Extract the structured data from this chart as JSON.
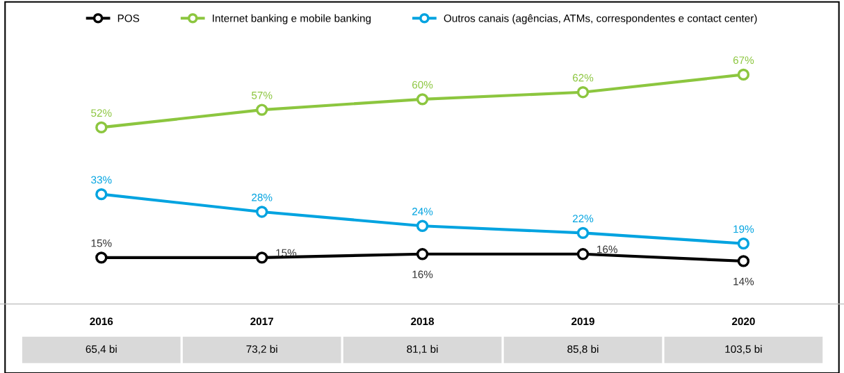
{
  "chart_data": {
    "type": "line",
    "categories": [
      "2016",
      "2017",
      "2018",
      "2019",
      "2020"
    ],
    "series": [
      {
        "name": "POS",
        "color": "#000000",
        "values": [
          15,
          15,
          16,
          16,
          14
        ],
        "value_labels": [
          "15%",
          "15%",
          "16%",
          "16%",
          "14%"
        ]
      },
      {
        "name": "Internet banking e mobile banking",
        "color": "#8cc63f",
        "values": [
          52,
          57,
          60,
          62,
          67
        ],
        "value_labels": [
          "52%",
          "57%",
          "60%",
          "62%",
          "67%"
        ]
      },
      {
        "name": "Outros canais (agências, ATMs, correspondentes e contact center)",
        "color": "#00a3e0",
        "values": [
          33,
          28,
          24,
          22,
          19
        ],
        "value_labels": [
          "33%",
          "28%",
          "24%",
          "22%",
          "19%"
        ]
      }
    ],
    "annotations": [
      "65,4 bi",
      "73,2 bi",
      "81,1 bi",
      "85,8 bi",
      "103,5 bi"
    ],
    "legend": "top",
    "marker": "circle",
    "line_style": "solid",
    "tick_labels": "x"
  }
}
